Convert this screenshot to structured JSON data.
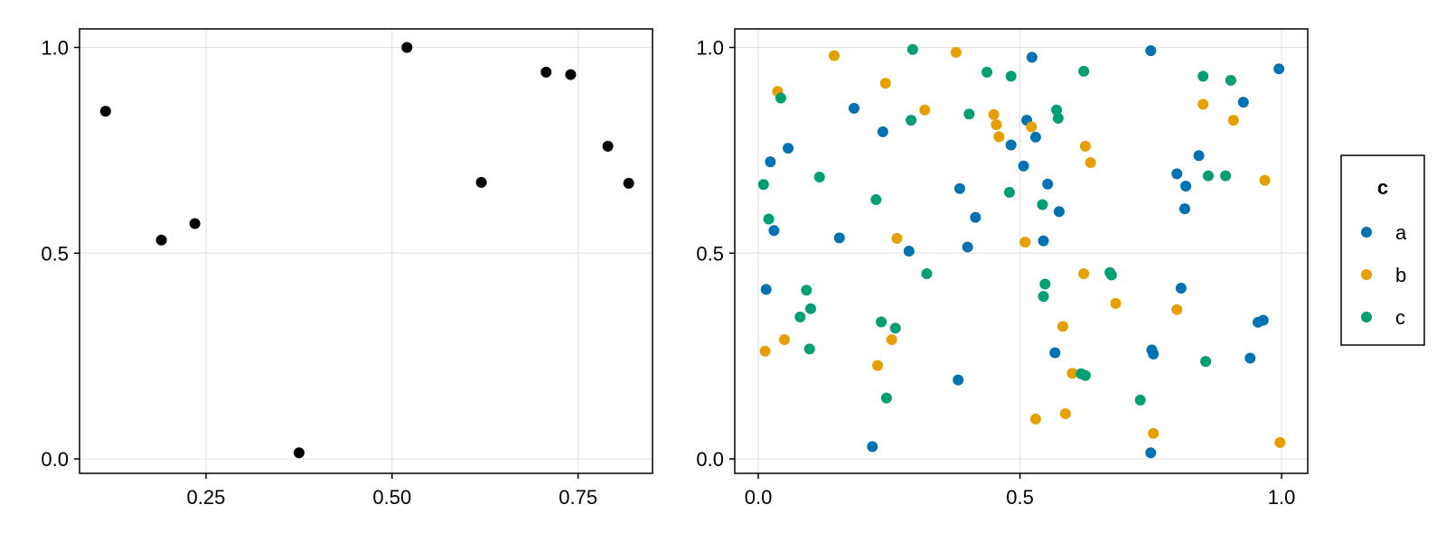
{
  "chart_data": [
    {
      "type": "scatter",
      "xlim": [
        0.08,
        0.85
      ],
      "ylim": [
        -0.035,
        1.045
      ],
      "xticks": [
        "0.25",
        "0.50",
        "0.75"
      ],
      "yticks": [
        "0.0",
        "0.5",
        "1.0"
      ],
      "grid": true,
      "point_color": "#000000",
      "points": [
        {
          "x": 0.115,
          "y": 0.845
        },
        {
          "x": 0.19,
          "y": 0.532
        },
        {
          "x": 0.235,
          "y": 0.572
        },
        {
          "x": 0.375,
          "y": 0.015
        },
        {
          "x": 0.52,
          "y": 1.0
        },
        {
          "x": 0.62,
          "y": 0.672
        },
        {
          "x": 0.707,
          "y": 0.94
        },
        {
          "x": 0.74,
          "y": 0.934
        },
        {
          "x": 0.79,
          "y": 0.76
        },
        {
          "x": 0.818,
          "y": 0.67
        }
      ]
    },
    {
      "type": "scatter",
      "xlim": [
        -0.045,
        1.05
      ],
      "ylim": [
        -0.035,
        1.045
      ],
      "xticks": [
        "0.0",
        "0.5",
        "1.0"
      ],
      "yticks": [
        "0.0",
        "0.5",
        "1.0"
      ],
      "grid": true,
      "legend": {
        "title": "c",
        "position": "right",
        "entries": [
          "a",
          "b",
          "c"
        ]
      },
      "series": [
        {
          "name": "a",
          "color": "#0072B2",
          "points": [
            {
              "x": 0.015,
              "y": 0.412
            },
            {
              "x": 0.023,
              "y": 0.722
            },
            {
              "x": 0.03,
              "y": 0.555
            },
            {
              "x": 0.057,
              "y": 0.755
            },
            {
              "x": 0.155,
              "y": 0.537
            },
            {
              "x": 0.183,
              "y": 0.852
            },
            {
              "x": 0.218,
              "y": 0.03
            },
            {
              "x": 0.238,
              "y": 0.795
            },
            {
              "x": 0.288,
              "y": 0.505
            },
            {
              "x": 0.382,
              "y": 0.192
            },
            {
              "x": 0.385,
              "y": 0.657
            },
            {
              "x": 0.4,
              "y": 0.515
            },
            {
              "x": 0.415,
              "y": 0.587
            },
            {
              "x": 0.483,
              "y": 0.763
            },
            {
              "x": 0.507,
              "y": 0.712
            },
            {
              "x": 0.513,
              "y": 0.823
            },
            {
              "x": 0.523,
              "y": 0.976
            },
            {
              "x": 0.53,
              "y": 0.782
            },
            {
              "x": 0.545,
              "y": 0.53
            },
            {
              "x": 0.553,
              "y": 0.668
            },
            {
              "x": 0.567,
              "y": 0.258
            },
            {
              "x": 0.575,
              "y": 0.601
            },
            {
              "x": 0.75,
              "y": 0.992
            },
            {
              "x": 0.752,
              "y": 0.265
            },
            {
              "x": 0.755,
              "y": 0.255
            },
            {
              "x": 0.75,
              "y": 0.015
            },
            {
              "x": 0.8,
              "y": 0.693
            },
            {
              "x": 0.808,
              "y": 0.415
            },
            {
              "x": 0.815,
              "y": 0.608
            },
            {
              "x": 0.817,
              "y": 0.663
            },
            {
              "x": 0.842,
              "y": 0.737
            },
            {
              "x": 0.927,
              "y": 0.867
            },
            {
              "x": 0.94,
              "y": 0.245
            },
            {
              "x": 0.955,
              "y": 0.332
            },
            {
              "x": 0.965,
              "y": 0.337
            },
            {
              "x": 0.995,
              "y": 0.948
            }
          ]
        },
        {
          "name": "b",
          "color": "#E69F00",
          "points": [
            {
              "x": 0.013,
              "y": 0.262
            },
            {
              "x": 0.037,
              "y": 0.893
            },
            {
              "x": 0.05,
              "y": 0.29
            },
            {
              "x": 0.145,
              "y": 0.98
            },
            {
              "x": 0.228,
              "y": 0.227
            },
            {
              "x": 0.243,
              "y": 0.913
            },
            {
              "x": 0.255,
              "y": 0.29
            },
            {
              "x": 0.265,
              "y": 0.536
            },
            {
              "x": 0.318,
              "y": 0.848
            },
            {
              "x": 0.378,
              "y": 0.988
            },
            {
              "x": 0.45,
              "y": 0.837
            },
            {
              "x": 0.455,
              "y": 0.812
            },
            {
              "x": 0.46,
              "y": 0.783
            },
            {
              "x": 0.51,
              "y": 0.527
            },
            {
              "x": 0.522,
              "y": 0.807
            },
            {
              "x": 0.53,
              "y": 0.097
            },
            {
              "x": 0.582,
              "y": 0.322
            },
            {
              "x": 0.587,
              "y": 0.11
            },
            {
              "x": 0.6,
              "y": 0.208
            },
            {
              "x": 0.622,
              "y": 0.45
            },
            {
              "x": 0.625,
              "y": 0.76
            },
            {
              "x": 0.635,
              "y": 0.72
            },
            {
              "x": 0.683,
              "y": 0.378
            },
            {
              "x": 0.755,
              "y": 0.062
            },
            {
              "x": 0.8,
              "y": 0.363
            },
            {
              "x": 0.85,
              "y": 0.862
            },
            {
              "x": 0.908,
              "y": 0.823
            },
            {
              "x": 0.968,
              "y": 0.677
            },
            {
              "x": 0.997,
              "y": 0.04
            }
          ]
        },
        {
          "name": "c",
          "color": "#009E73",
          "points": [
            {
              "x": 0.01,
              "y": 0.667
            },
            {
              "x": 0.02,
              "y": 0.583
            },
            {
              "x": 0.043,
              "y": 0.877
            },
            {
              "x": 0.08,
              "y": 0.345
            },
            {
              "x": 0.092,
              "y": 0.41
            },
            {
              "x": 0.098,
              "y": 0.267
            },
            {
              "x": 0.1,
              "y": 0.365
            },
            {
              "x": 0.117,
              "y": 0.685
            },
            {
              "x": 0.225,
              "y": 0.63
            },
            {
              "x": 0.235,
              "y": 0.333
            },
            {
              "x": 0.245,
              "y": 0.148
            },
            {
              "x": 0.262,
              "y": 0.318
            },
            {
              "x": 0.292,
              "y": 0.823
            },
            {
              "x": 0.295,
              "y": 0.995
            },
            {
              "x": 0.322,
              "y": 0.45
            },
            {
              "x": 0.403,
              "y": 0.838
            },
            {
              "x": 0.437,
              "y": 0.94
            },
            {
              "x": 0.48,
              "y": 0.648
            },
            {
              "x": 0.483,
              "y": 0.93
            },
            {
              "x": 0.543,
              "y": 0.618
            },
            {
              "x": 0.545,
              "y": 0.395
            },
            {
              "x": 0.548,
              "y": 0.425
            },
            {
              "x": 0.57,
              "y": 0.848
            },
            {
              "x": 0.573,
              "y": 0.828
            },
            {
              "x": 0.617,
              "y": 0.207
            },
            {
              "x": 0.622,
              "y": 0.942
            },
            {
              "x": 0.625,
              "y": 0.203
            },
            {
              "x": 0.672,
              "y": 0.453
            },
            {
              "x": 0.675,
              "y": 0.447
            },
            {
              "x": 0.73,
              "y": 0.143
            },
            {
              "x": 0.85,
              "y": 0.93
            },
            {
              "x": 0.855,
              "y": 0.237
            },
            {
              "x": 0.86,
              "y": 0.688
            },
            {
              "x": 0.893,
              "y": 0.688
            },
            {
              "x": 0.903,
              "y": 0.92
            }
          ]
        }
      ]
    }
  ]
}
